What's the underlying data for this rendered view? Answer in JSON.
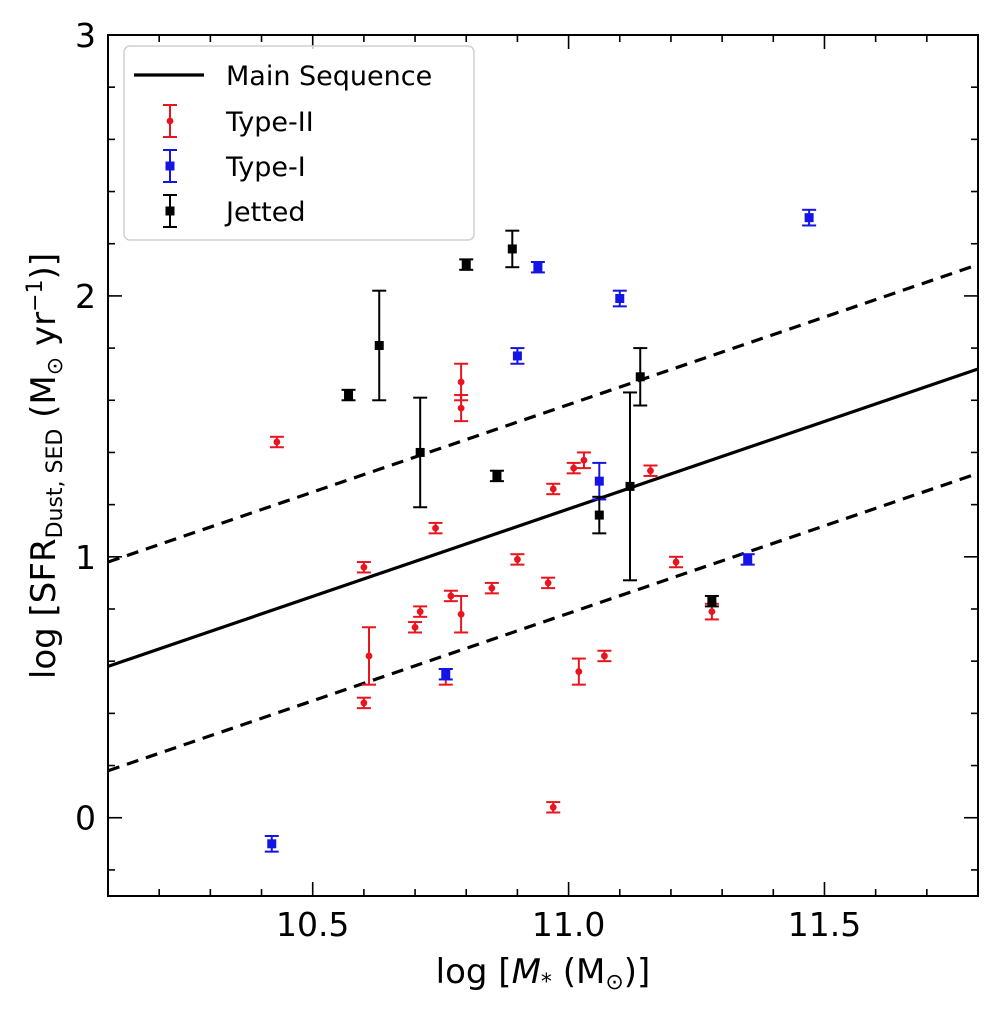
{
  "chart_data": {
    "type": "scatter",
    "xlabel_prefix": "log [",
    "xlabel_sym": "M",
    "xlabel_sub": "*",
    "xlabel_unit": " (M",
    "xlabel_sun": "⊙",
    "xlabel_suffix": ")]",
    "ylabel_prefix": "log [SFR",
    "ylabel_sub": "Dust, SED",
    "ylabel_unit": " (M",
    "ylabel_sun": "⊙",
    "ylabel_yr": " yr",
    "ylabel_exp": "−1",
    "ylabel_suffix": ")]",
    "xlim": [
      10.1,
      11.8
    ],
    "ylim": [
      -0.3,
      3.0
    ],
    "x_major_ticks": [
      10.5,
      11.0,
      11.5
    ],
    "x_tick_labels": [
      "10.5",
      "11.0",
      "11.5"
    ],
    "x_minor_step": 0.1,
    "y_major_ticks": [
      0,
      1,
      2,
      3
    ],
    "y_tick_labels": [
      "0",
      "1",
      "2",
      "3"
    ],
    "y_minor_step": 0.2,
    "main_sequence": {
      "label": "Main Sequence",
      "x": [
        10.1,
        11.8
      ],
      "y": [
        0.58,
        1.72
      ],
      "upper_offset": 0.4,
      "lower_offset": -0.4
    },
    "legend": [
      {
        "label": "Main Sequence",
        "kind": "line",
        "color": "#000000"
      },
      {
        "label": "Type-II",
        "kind": "circle",
        "color": "#e8141e"
      },
      {
        "label": "Type-I",
        "kind": "square",
        "color": "#1414e6"
      },
      {
        "label": "Jetted",
        "kind": "square",
        "color": "#000000"
      }
    ],
    "series": [
      {
        "name": "Type-II",
        "marker": "circle",
        "color": "#e8141e",
        "points": [
          {
            "x": 10.43,
            "y": 1.44,
            "err": 0.02
          },
          {
            "x": 10.6,
            "y": 0.96,
            "err": 0.02
          },
          {
            "x": 10.6,
            "y": 0.44,
            "err": 0.02
          },
          {
            "x": 10.61,
            "y": 0.62,
            "err": 0.11
          },
          {
            "x": 10.7,
            "y": 0.73,
            "err": 0.02
          },
          {
            "x": 10.71,
            "y": 0.79,
            "err": 0.02
          },
          {
            "x": 10.74,
            "y": 1.11,
            "err": 0.02
          },
          {
            "x": 10.76,
            "y": 0.54,
            "err": 0.03
          },
          {
            "x": 10.77,
            "y": 0.85,
            "err": 0.02
          },
          {
            "x": 10.79,
            "y": 1.57,
            "err": 0.05
          },
          {
            "x": 10.79,
            "y": 1.67,
            "err": 0.07
          },
          {
            "x": 10.79,
            "y": 0.78,
            "err": 0.07
          },
          {
            "x": 10.85,
            "y": 0.88,
            "err": 0.02
          },
          {
            "x": 10.9,
            "y": 0.99,
            "err": 0.02
          },
          {
            "x": 10.96,
            "y": 0.9,
            "err": 0.02
          },
          {
            "x": 10.97,
            "y": 1.26,
            "err": 0.02
          },
          {
            "x": 10.97,
            "y": 0.04,
            "err": 0.02
          },
          {
            "x": 11.01,
            "y": 1.34,
            "err": 0.02
          },
          {
            "x": 11.02,
            "y": 0.56,
            "err": 0.05
          },
          {
            "x": 11.03,
            "y": 1.37,
            "err": 0.03
          },
          {
            "x": 11.07,
            "y": 0.62,
            "err": 0.02
          },
          {
            "x": 11.16,
            "y": 1.33,
            "err": 0.02
          },
          {
            "x": 11.21,
            "y": 0.98,
            "err": 0.02
          },
          {
            "x": 11.28,
            "y": 0.79,
            "err": 0.03
          }
        ]
      },
      {
        "name": "Type-I",
        "marker": "square",
        "color": "#1414e6",
        "points": [
          {
            "x": 10.42,
            "y": -0.1,
            "err": 0.03
          },
          {
            "x": 10.76,
            "y": 0.55,
            "err": 0.02
          },
          {
            "x": 10.9,
            "y": 1.77,
            "err": 0.03
          },
          {
            "x": 10.94,
            "y": 2.11,
            "err": 0.02
          },
          {
            "x": 11.06,
            "y": 1.29,
            "err": 0.07
          },
          {
            "x": 11.1,
            "y": 1.99,
            "err": 0.03
          },
          {
            "x": 11.35,
            "y": 0.99,
            "err": 0.02
          },
          {
            "x": 11.47,
            "y": 2.3,
            "err": 0.03
          }
        ]
      },
      {
        "name": "Jetted",
        "marker": "square",
        "color": "#000000",
        "points": [
          {
            "x": 10.57,
            "y": 1.62,
            "err": 0.02
          },
          {
            "x": 10.63,
            "y": 1.81,
            "err": 0.21
          },
          {
            "x": 10.71,
            "y": 1.4,
            "err": 0.21
          },
          {
            "x": 10.8,
            "y": 2.12,
            "err": 0.02
          },
          {
            "x": 10.86,
            "y": 1.31,
            "err": 0.02
          },
          {
            "x": 10.89,
            "y": 2.18,
            "err": 0.07
          },
          {
            "x": 11.06,
            "y": 1.16,
            "err": 0.07
          },
          {
            "x": 11.12,
            "y": 1.27,
            "err": 0.36
          },
          {
            "x": 11.14,
            "y": 1.69,
            "err": 0.11
          },
          {
            "x": 11.28,
            "y": 0.83,
            "err": 0.02
          }
        ]
      }
    ]
  }
}
